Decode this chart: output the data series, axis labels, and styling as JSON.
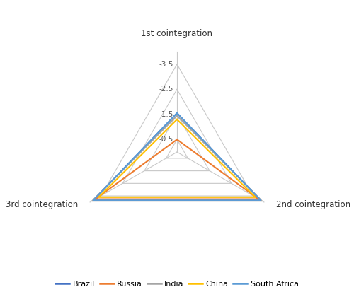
{
  "categories": [
    "1st cointegration",
    "2nd cointegration",
    "3rd cointegration"
  ],
  "series": {
    "Brazil": [
      -1.55,
      -3.85,
      -3.85
    ],
    "Russia": [
      -0.5,
      -3.75,
      -3.75
    ],
    "India": [
      -1.45,
      -3.9,
      -3.9
    ],
    "China": [
      -1.3,
      -3.6,
      -3.6
    ],
    "South Africa": [
      -1.55,
      -3.85,
      -3.85
    ]
  },
  "colors": {
    "Brazil": "#4472C4",
    "Russia": "#ED7D31",
    "India": "#A5A5A5",
    "China": "#FFC000",
    "South Africa": "#5B9BD5"
  },
  "radial_ticks": [
    -0.5,
    -1.5,
    -2.5,
    -3.5
  ],
  "r_max": 0.0,
  "r_min": -4.0,
  "background_color": "#ffffff",
  "grid_color": "#c8c8c8",
  "legend_labels": [
    "Brazil",
    "Russia",
    "India",
    "China",
    "South Africa"
  ]
}
